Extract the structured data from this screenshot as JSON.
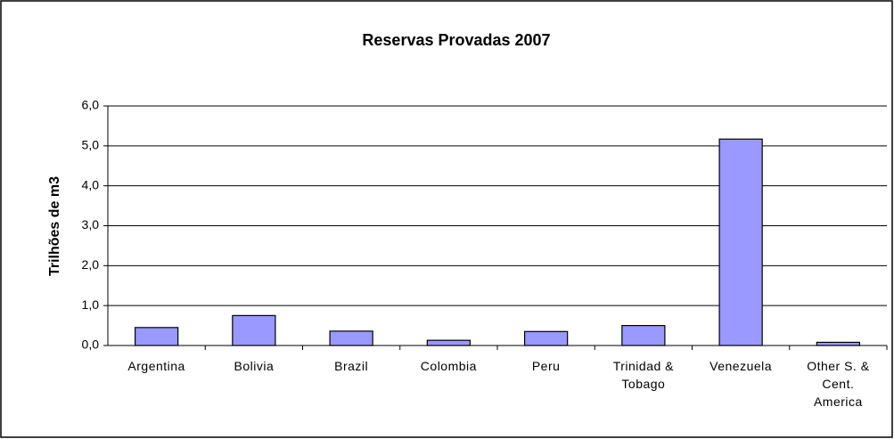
{
  "chart_data": {
    "type": "bar",
    "title": "Reservas Provadas 2007",
    "y_label": "Trilhões de m3",
    "categories": [
      "Argentina",
      "Bolivia",
      "Brazil",
      "Colombia",
      "Peru",
      "Trinidad & Tobago",
      "Venezuela",
      "Other S. & Cent. America"
    ],
    "values": [
      0.45,
      0.75,
      0.36,
      0.13,
      0.35,
      0.5,
      5.17,
      0.08
    ],
    "color": "#9999ff",
    "ylim": [
      0,
      6
    ],
    "yticks": [
      {
        "value": 0,
        "label": "0,0"
      },
      {
        "value": 1,
        "label": "1,0"
      },
      {
        "value": 2,
        "label": "2,0"
      },
      {
        "value": 3,
        "label": "3,0"
      },
      {
        "value": 4,
        "label": "4,0"
      },
      {
        "value": 5,
        "label": "5,0"
      },
      {
        "value": 6,
        "label": "6,0"
      }
    ],
    "grid": true
  }
}
